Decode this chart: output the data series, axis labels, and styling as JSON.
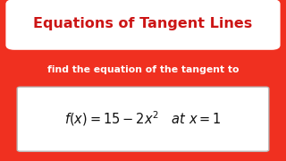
{
  "bg_color": "#f03020",
  "title_text": "Equations of Tangent Lines",
  "title_color": "#cc1515",
  "title_bg": "#ffffff",
  "subtitle_text": "find the equation of the tangent to",
  "subtitle_color": "#ffffff",
  "formula": "$f(x) = 15 - 2x^2 \\quad at\\ x = 1$",
  "formula_box_bg": "#ffffff",
  "formula_color": "#111111",
  "fig_width": 3.2,
  "fig_height": 1.8,
  "dpi": 100
}
